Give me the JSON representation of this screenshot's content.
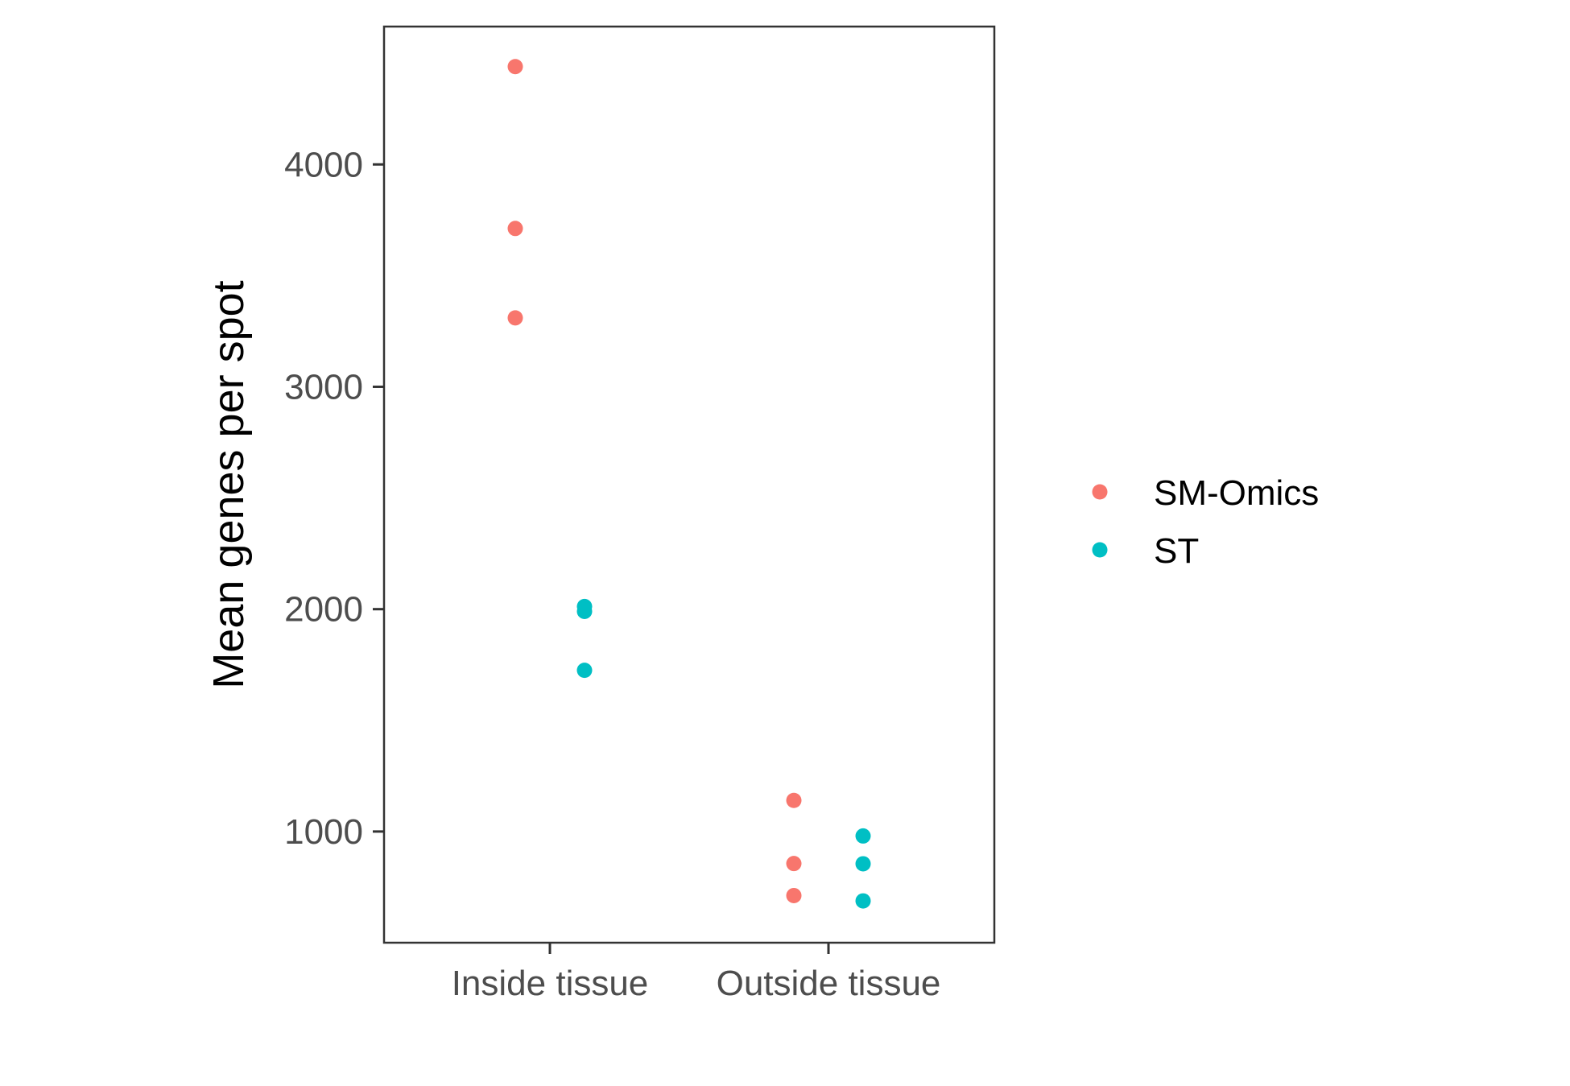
{
  "chart_data": {
    "type": "scatter",
    "title": "",
    "xlabel": "",
    "ylabel": "Mean genes per spot",
    "categories": [
      "Inside tissue",
      "Outside tissue"
    ],
    "y_ticks": [
      1000,
      2000,
      3000,
      4000
    ],
    "ylim": [
      500,
      4620
    ],
    "grid": false,
    "legend_position": "right",
    "series": [
      {
        "name": "SM-Omics",
        "color": "#F8766D",
        "points": [
          {
            "x": "Inside tissue",
            "y": 4440
          },
          {
            "x": "Inside tissue",
            "y": 3712
          },
          {
            "x": "Inside tissue",
            "y": 3310
          },
          {
            "x": "Outside tissue",
            "y": 1140
          },
          {
            "x": "Outside tissue",
            "y": 856
          },
          {
            "x": "Outside tissue",
            "y": 712
          }
        ]
      },
      {
        "name": "ST",
        "color": "#00BFC4",
        "points": [
          {
            "x": "Inside tissue",
            "y": 2012
          },
          {
            "x": "Inside tissue",
            "y": 1990
          },
          {
            "x": "Inside tissue",
            "y": 1725
          },
          {
            "x": "Outside tissue",
            "y": 980
          },
          {
            "x": "Outside tissue",
            "y": 855
          },
          {
            "x": "Outside tissue",
            "y": 688
          }
        ]
      }
    ]
  }
}
